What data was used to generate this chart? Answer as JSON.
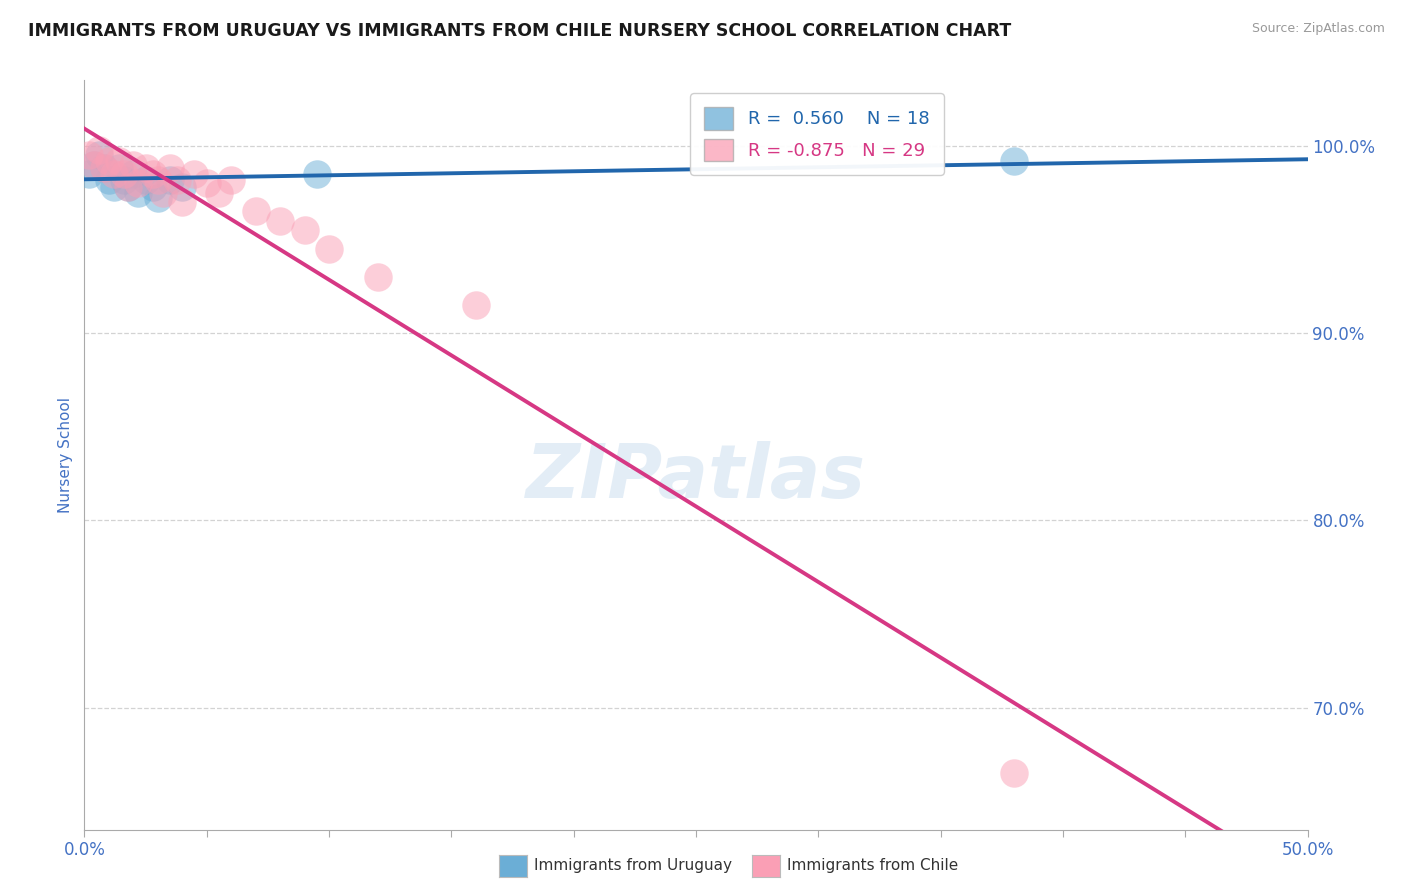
{
  "title": "IMMIGRANTS FROM URUGUAY VS IMMIGRANTS FROM CHILE NURSERY SCHOOL CORRELATION CHART",
  "source": "Source: ZipAtlas.com",
  "ylabel": "Nursery School",
  "xlim": [
    0.0,
    0.5
  ],
  "ylim": [
    0.635,
    1.035
  ],
  "xticks": [
    0.0,
    0.05,
    0.1,
    0.15,
    0.2,
    0.25,
    0.3,
    0.35,
    0.4,
    0.45,
    0.5
  ],
  "yticks": [
    0.7,
    0.8,
    0.9,
    1.0
  ],
  "yticklabels": [
    "70.0%",
    "80.0%",
    "90.0%",
    "100.0%"
  ],
  "color_uruguay": "#6baed6",
  "color_chile": "#fa9fb5",
  "color_trendline_uruguay": "#2166ac",
  "color_trendline_chile": "#d63884",
  "background_color": "#ffffff",
  "grid_color": "#c8c8c8",
  "axis_label_color": "#4472c4",
  "title_color": "#1a1a1a",
  "uruguay_points_x": [
    0.002,
    0.004,
    0.006,
    0.008,
    0.01,
    0.012,
    0.014,
    0.016,
    0.018,
    0.02,
    0.022,
    0.025,
    0.028,
    0.03,
    0.035,
    0.04,
    0.095,
    0.38
  ],
  "uruguay_points_y": [
    0.985,
    0.99,
    0.995,
    0.988,
    0.982,
    0.978,
    0.988,
    0.982,
    0.978,
    0.985,
    0.975,
    0.982,
    0.978,
    0.972,
    0.982,
    0.978,
    0.985,
    0.992
  ],
  "chile_points_x": [
    0.002,
    0.004,
    0.006,
    0.008,
    0.01,
    0.012,
    0.014,
    0.016,
    0.018,
    0.02,
    0.022,
    0.025,
    0.028,
    0.03,
    0.032,
    0.035,
    0.038,
    0.04,
    0.045,
    0.05,
    0.055,
    0.06,
    0.07,
    0.08,
    0.09,
    0.1,
    0.12,
    0.16,
    0.38
  ],
  "chile_points_y": [
    0.995,
    0.99,
    0.998,
    0.988,
    0.992,
    0.985,
    0.992,
    0.985,
    0.978,
    0.99,
    0.98,
    0.988,
    0.985,
    0.982,
    0.975,
    0.988,
    0.982,
    0.97,
    0.985,
    0.98,
    0.975,
    0.982,
    0.965,
    0.96,
    0.955,
    0.945,
    0.93,
    0.915,
    0.665
  ]
}
